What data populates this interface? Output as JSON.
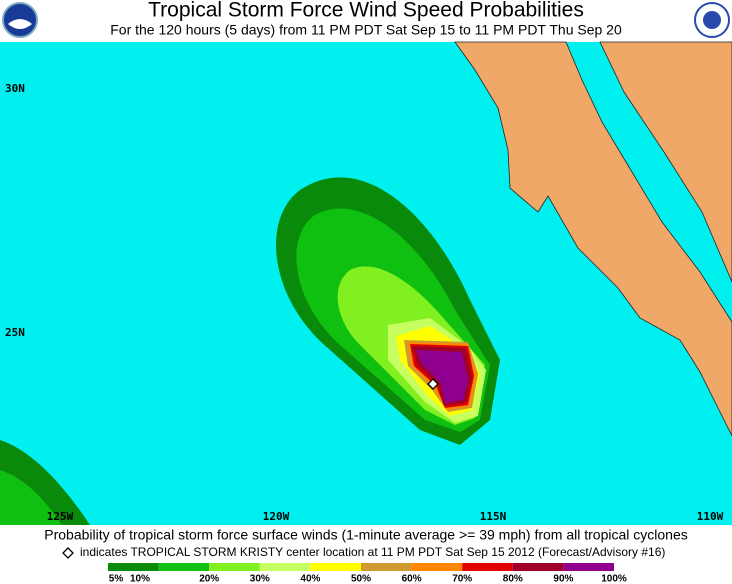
{
  "header": {
    "title": "Tropical Storm Force Wind Speed Probabilities",
    "subtitle": "For the 120 hours (5 days) from 11 PM PDT Sat Sep 15 to 11 PM PDT Thu Sep 20"
  },
  "map": {
    "lat_labels": [
      "30N",
      "25N"
    ],
    "lon_labels": [
      "125W",
      "120W",
      "115N",
      "110W"
    ]
  },
  "footer": {
    "caption": "Probability of tropical storm force surface winds (1-minute average >= 39 mph) from all tropical cyclones",
    "note": "indicates TROPICAL STORM KRISTY center location at 11 PM PDT Sat Sep 15 2012 (Forecast/Advisory #16)"
  },
  "legend": {
    "labels": [
      "5%",
      "10%",
      "20%",
      "30%",
      "40%",
      "50%",
      "60%",
      "70%",
      "80%",
      "90%",
      "100%"
    ],
    "colors": [
      "#0a8a0a",
      "#10c010",
      "#80f020",
      "#c8ff60",
      "#ffff00",
      "#d09a30",
      "#ff8800",
      "#e00000",
      "#a00028",
      "#900090"
    ]
  }
}
